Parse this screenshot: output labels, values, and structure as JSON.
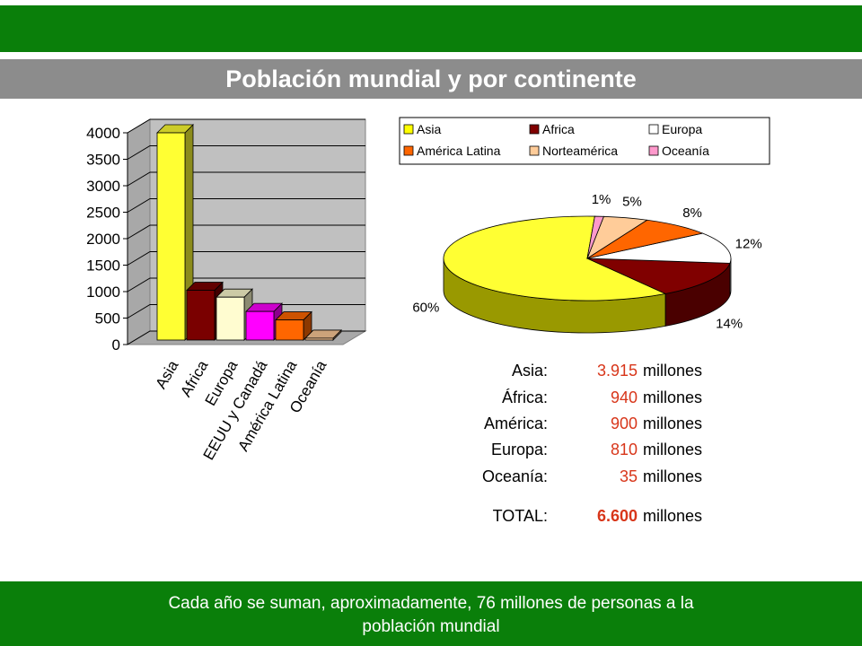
{
  "title": "Población mundial y por continente",
  "footer": "Cada año se suman, aproximadamente, 76 millones de personas a la población mundial",
  "chart_data": [
    {
      "type": "bar",
      "categories": [
        "Asia",
        "Africa",
        "Europa",
        "EEUU y Canadá",
        "América Latina",
        "Oceanía"
      ],
      "values": [
        3915,
        940,
        810,
        540,
        380,
        35
      ],
      "colors": [
        "#ffff33",
        "#7a0000",
        "#fffcd0",
        "#ff00ff",
        "#ff6600",
        "#ffcc99"
      ],
      "ylim": [
        0,
        4000
      ],
      "yticks": [
        "0",
        "500",
        "1000",
        "1500",
        "2000",
        "2500",
        "3000",
        "3500",
        "4000"
      ],
      "grid": true,
      "three_d": true
    },
    {
      "type": "pie",
      "legend": [
        {
          "label": "Asia",
          "color": "#ffff00"
        },
        {
          "label": "Africa",
          "color": "#800000"
        },
        {
          "label": "Europa",
          "color": "#ffffff"
        },
        {
          "label": "América Latina",
          "color": "#ff6600"
        },
        {
          "label": "Norteamérica",
          "color": "#ffcc99"
        },
        {
          "label": "Oceanía",
          "color": "#ff99cc"
        }
      ],
      "slices": [
        {
          "label": "60%",
          "value": 60,
          "color": "#ffff33",
          "side": "#999900"
        },
        {
          "label": "14%",
          "value": 14,
          "color": "#800000",
          "side": "#4a0000"
        },
        {
          "label": "12%",
          "value": 12,
          "color": "#ffffff",
          "side": "#bbbbbb"
        },
        {
          "label": "8%",
          "value": 8,
          "color": "#ff6600",
          "side": "#aa4400"
        },
        {
          "label": "5%",
          "value": 5,
          "color": "#ffcc99",
          "side": "#bb8855"
        },
        {
          "label": "1%",
          "value": 1,
          "color": "#ff99cc",
          "side": "#bb6688"
        }
      ],
      "legend_position": "top",
      "three_d": true
    }
  ],
  "stats": [
    {
      "label": "Asia:",
      "value": "3.915",
      "unit": "millones"
    },
    {
      "label": "África:",
      "value": "940",
      "unit": "millones"
    },
    {
      "label": "América:",
      "value": "900",
      "unit": "millones"
    },
    {
      "label": "Europa:",
      "value": "810",
      "unit": "millones"
    },
    {
      "label": "Oceanía:",
      "value": "35",
      "unit": "millones"
    }
  ],
  "total": {
    "label": "TOTAL:",
    "value": "6.600",
    "unit": "millones"
  }
}
